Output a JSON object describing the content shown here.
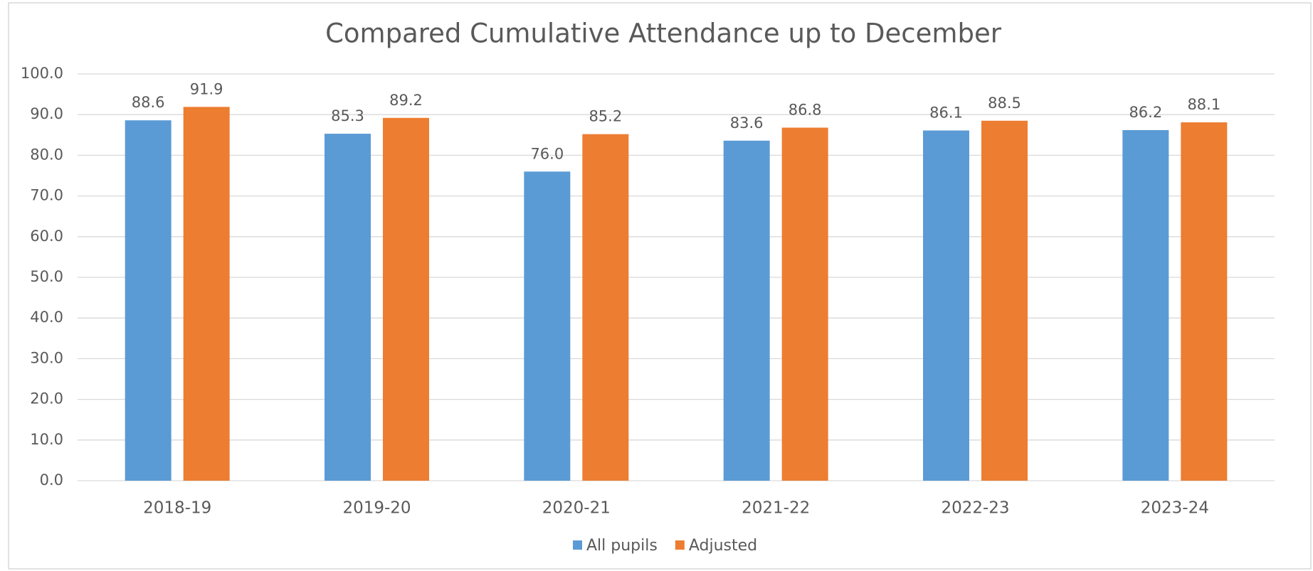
{
  "chart_data": {
    "type": "bar",
    "title": "Compared Cumulative Attendance up to December",
    "categories": [
      "2018-19",
      "2019-20",
      "2020-21",
      "2021-22",
      "2022-23",
      "2023-24"
    ],
    "series": [
      {
        "name": "All pupils",
        "color": "#5b9bd5",
        "values": [
          88.6,
          85.3,
          76.0,
          83.6,
          86.1,
          86.2
        ],
        "value_labels": [
          "88.6",
          "85.3",
          "76.0",
          "83.6",
          "86.1",
          "86.2"
        ]
      },
      {
        "name": "Adjusted",
        "color": "#ed7d31",
        "values": [
          91.9,
          89.2,
          85.2,
          86.8,
          88.5,
          88.1
        ],
        "value_labels": [
          "91.9",
          "89.2",
          "85.2",
          "86.8",
          "88.5",
          "88.1"
        ]
      }
    ],
    "ylim": [
      0,
      100
    ],
    "yticks": [
      {
        "value": 0,
        "label": "0.0"
      },
      {
        "value": 10,
        "label": "10.0"
      },
      {
        "value": 20,
        "label": "20.0"
      },
      {
        "value": 30,
        "label": "30.0"
      },
      {
        "value": 40,
        "label": "40.0"
      },
      {
        "value": 50,
        "label": "50.0"
      },
      {
        "value": 60,
        "label": "60.0"
      },
      {
        "value": 70,
        "label": "70.0"
      },
      {
        "value": 80,
        "label": "80.0"
      },
      {
        "value": 90,
        "label": "90.0"
      },
      {
        "value": 100,
        "label": "100.0"
      }
    ],
    "grid": true,
    "legend": "bottom"
  }
}
